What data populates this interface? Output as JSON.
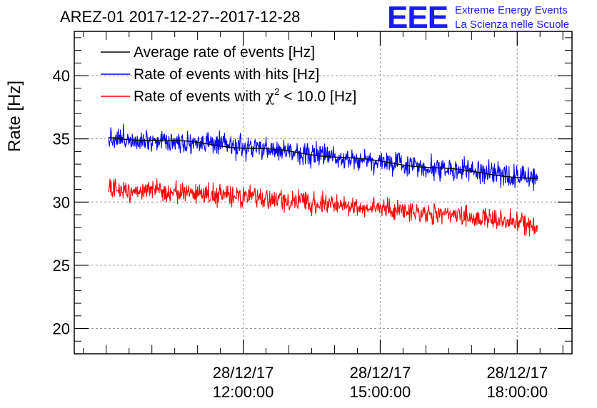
{
  "chart_data": {
    "type": "line",
    "title": "AREZ-01 2017-12-27--2017-12-28",
    "ylabel": "Rate [Hz]",
    "xlabel": "",
    "ylim": [
      18,
      43.5
    ],
    "yticks": [
      20,
      25,
      30,
      35,
      40
    ],
    "ytick_labels": [
      "20",
      "25",
      "30",
      "35",
      "40"
    ],
    "x_unit": "hours on 28/12/17",
    "xlim": [
      8.3,
      19.2
    ],
    "xticks": [
      {
        "x": 12,
        "date": "28/12/17",
        "time": "12:00:00"
      },
      {
        "x": 15,
        "date": "28/12/17",
        "time": "15:00:00"
      },
      {
        "x": 18,
        "date": "28/12/17",
        "time": "18:00:00"
      }
    ],
    "x_range": [
      9.05,
      18.45
    ],
    "grid": true,
    "legend_position": "top-left",
    "legend": [
      {
        "label": "Average rate of events [Hz]",
        "color": "#000000"
      },
      {
        "label": "Rate of events with hits [Hz]",
        "color": "#0000ff"
      },
      {
        "label_prefix": "Rate of events with ",
        "label_chi": "χ",
        "label_sup": "2",
        "label_suffix": " < 10.0 [Hz]",
        "color": "#ff0000"
      }
    ],
    "series": [
      {
        "name": "Average rate of events [Hz]",
        "color": "#000000",
        "anchors_x": [
          9.05,
          10.0,
          11.0,
          12.0,
          13.0,
          14.0,
          15.0,
          16.0,
          17.0,
          18.0,
          18.45
        ],
        "anchors_y": [
          35.1,
          34.9,
          34.7,
          34.3,
          34.0,
          33.6,
          33.2,
          32.8,
          32.4,
          32.0,
          31.8
        ]
      },
      {
        "name": "Rate of events with hits [Hz]",
        "color": "#0000ff",
        "anchors_x": [
          9.05,
          10.0,
          11.0,
          12.0,
          13.0,
          14.0,
          15.0,
          16.0,
          17.0,
          18.0,
          18.45
        ],
        "anchors_y": [
          35.1,
          34.9,
          34.7,
          34.3,
          34.0,
          33.6,
          33.2,
          32.8,
          32.4,
          32.0,
          31.8
        ],
        "noise": 0.55
      },
      {
        "name": "Rate of events with χ2 < 10.0 [Hz]",
        "color": "#ff0000",
        "anchors_x": [
          9.05,
          10.0,
          11.0,
          12.0,
          13.0,
          14.0,
          15.0,
          16.0,
          17.0,
          18.0,
          18.45
        ],
        "anchors_y": [
          31.0,
          30.9,
          30.7,
          30.4,
          30.1,
          29.8,
          29.5,
          29.1,
          28.8,
          28.4,
          28.1
        ],
        "noise": 0.5
      }
    ]
  },
  "logo": {
    "mark": "EEE",
    "line1": "Extreme Energy Events",
    "line2": "La Scienza nelle Scuole",
    "color": "#1a1aff"
  }
}
